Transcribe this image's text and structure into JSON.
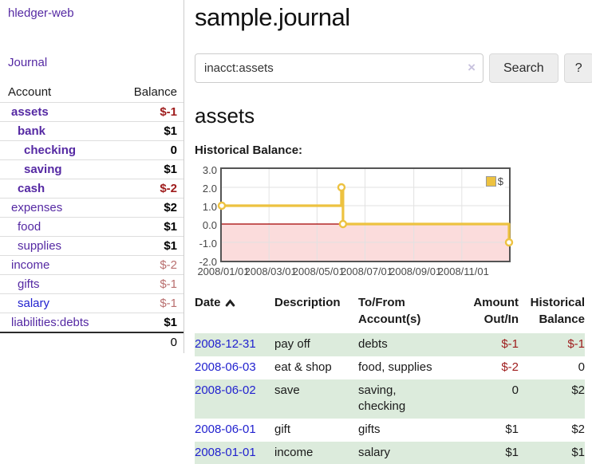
{
  "brand": "hledger-web",
  "nav": {
    "journal": "Journal"
  },
  "sidebar": {
    "headers": {
      "account": "Account",
      "balance": "Balance"
    },
    "accounts": [
      {
        "name": "assets",
        "level": 1,
        "bold": true,
        "balance": "$-1",
        "tone": "negative"
      },
      {
        "name": "bank",
        "level": 2,
        "bold": true,
        "balance": "$1",
        "tone": "normal"
      },
      {
        "name": "checking",
        "level": 3,
        "bold": true,
        "balance": "0",
        "tone": "normal"
      },
      {
        "name": "saving",
        "level": 3,
        "bold": true,
        "balance": "$1",
        "tone": "normal"
      },
      {
        "name": "cash",
        "level": 2,
        "bold": true,
        "balance": "$-2",
        "tone": "negative"
      },
      {
        "name": "expenses",
        "level": 1,
        "bold": false,
        "balance": "$2",
        "tone": "normal"
      },
      {
        "name": "food",
        "level": 2,
        "bold": false,
        "balance": "$1",
        "tone": "normal"
      },
      {
        "name": "supplies",
        "level": 2,
        "bold": false,
        "balance": "$1",
        "tone": "normal"
      },
      {
        "name": "income",
        "level": 1,
        "bold": false,
        "balance": "$-2",
        "tone": "negative-muted"
      },
      {
        "name": "gifts",
        "level": 2,
        "bold": false,
        "balance": "$-1",
        "tone": "negative-muted"
      },
      {
        "name": "salary",
        "level": 2,
        "bold": false,
        "link": "blue",
        "balance": "$-1",
        "tone": "negative-muted"
      },
      {
        "name": "liabilities:debts",
        "level": 1,
        "bold": false,
        "balance": "$1",
        "tone": "normal"
      }
    ],
    "total": "0"
  },
  "main": {
    "title": "sample.journal",
    "search": {
      "value": "inacct:assets",
      "clear": "×",
      "button": "Search",
      "help": "?"
    },
    "heading": "assets",
    "chart_label": "Historical Balance:"
  },
  "chart_data": {
    "type": "line",
    "steps": true,
    "title": "Historical Balance",
    "series": [
      {
        "name": "$",
        "color": "#edc240",
        "points": [
          [
            "2008-01-01",
            1
          ],
          [
            "2008-06-01",
            2
          ],
          [
            "2008-06-03",
            0
          ],
          [
            "2008-12-31",
            -1
          ]
        ]
      }
    ],
    "x_range": [
      "2008-01-01",
      "2008-12-31"
    ],
    "ylim": [
      -2,
      3
    ],
    "y_ticks": [
      "3.0",
      "2.0",
      "1.0",
      "0.0",
      "-1.0",
      "-2.0"
    ],
    "x_ticks": [
      "2008/01/01",
      "2008/03/01",
      "2008/05/01",
      "2008/07/01",
      "2008/09/01",
      "2008/11/01"
    ],
    "legend": {
      "label": "$",
      "position": "top-right"
    },
    "grid": true,
    "negative_region_color": "#fbdcdc",
    "zero_line_color": "#a40000",
    "point_fill": "#ffffff"
  },
  "register": {
    "headers": {
      "date": "Date",
      "description": "Description",
      "accounts": "To/From\nAccount(s)",
      "amount": "Amount\nOut/In",
      "balance": "Historical\nBalance"
    },
    "rows": [
      {
        "date": "2008-12-31",
        "description": "pay off",
        "accounts": "debts",
        "amount": "$-1",
        "amount_negative": true,
        "balance": "$-1",
        "balance_negative": true
      },
      {
        "date": "2008-06-03",
        "description": "eat & shop",
        "accounts": "food, supplies",
        "amount": "$-2",
        "amount_negative": true,
        "balance": "0",
        "balance_negative": false
      },
      {
        "date": "2008-06-02",
        "description": "save",
        "accounts": "saving, checking",
        "amount": "0",
        "amount_negative": false,
        "balance": "$2",
        "balance_negative": false
      },
      {
        "date": "2008-06-01",
        "description": "gift",
        "accounts": "gifts",
        "amount": "$1",
        "amount_negative": false,
        "balance": "$2",
        "balance_negative": false
      },
      {
        "date": "2008-01-01",
        "description": "income",
        "accounts": "salary",
        "amount": "$1",
        "amount_negative": false,
        "balance": "$1",
        "balance_negative": false
      }
    ]
  }
}
